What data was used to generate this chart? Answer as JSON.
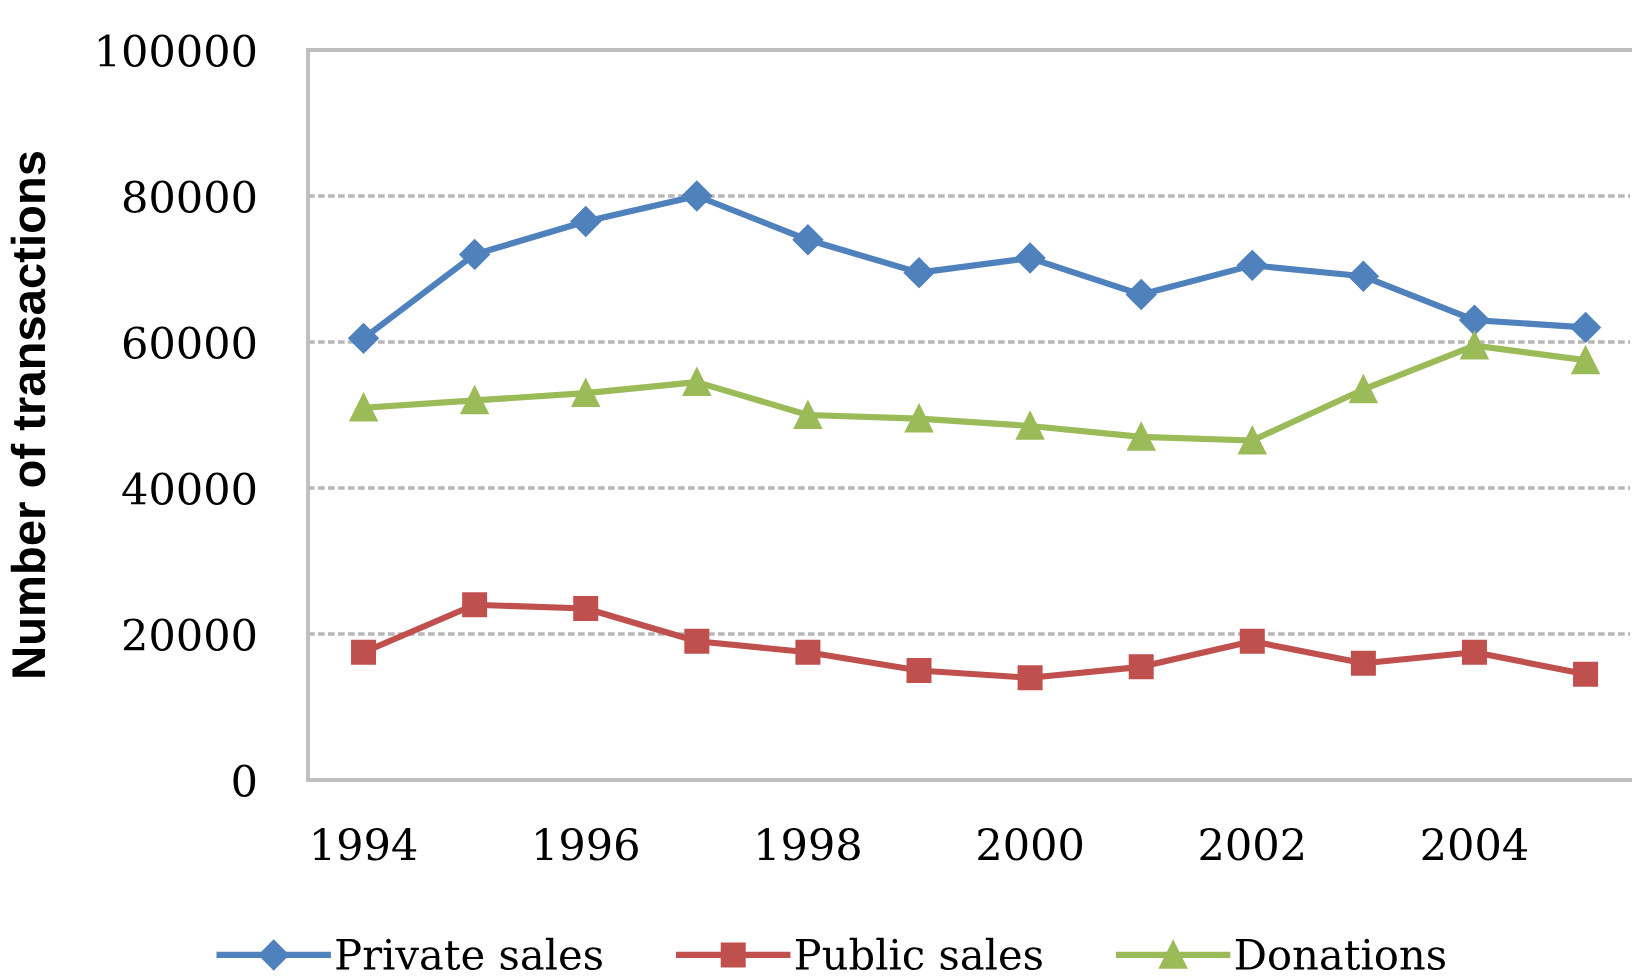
{
  "chart_data": {
    "type": "line",
    "ylabel": "Number of transactions",
    "x": [
      1994,
      1995,
      1996,
      1997,
      1998,
      1999,
      2000,
      2001,
      2002,
      2003,
      2004,
      2005
    ],
    "series": [
      {
        "name": "Private sales",
        "color": "#4f81bd",
        "marker": "diamond",
        "values": [
          60500,
          72000,
          76500,
          80000,
          74000,
          69500,
          71500,
          66500,
          70500,
          69000,
          63000,
          62000
        ]
      },
      {
        "name": "Public sales",
        "color": "#c0504d",
        "marker": "square",
        "values": [
          17500,
          24000,
          23500,
          19000,
          17500,
          15000,
          14000,
          15500,
          19000,
          16000,
          17500,
          14500
        ]
      },
      {
        "name": "Donations",
        "color": "#9bbb59",
        "marker": "triangle",
        "values": [
          51000,
          52000,
          53000,
          54500,
          50000,
          49500,
          48500,
          47000,
          46500,
          53500,
          59500,
          57500
        ]
      }
    ],
    "xlim": [
      1993.5,
      2005.4
    ],
    "xticks": [
      1994,
      1996,
      1998,
      2000,
      2002,
      2004
    ],
    "ylim": [
      0,
      100000
    ],
    "yticks": [
      0,
      20000,
      40000,
      60000,
      80000,
      100000
    ],
    "grid": "y",
    "legend": "bottom",
    "line_style": "solid"
  }
}
